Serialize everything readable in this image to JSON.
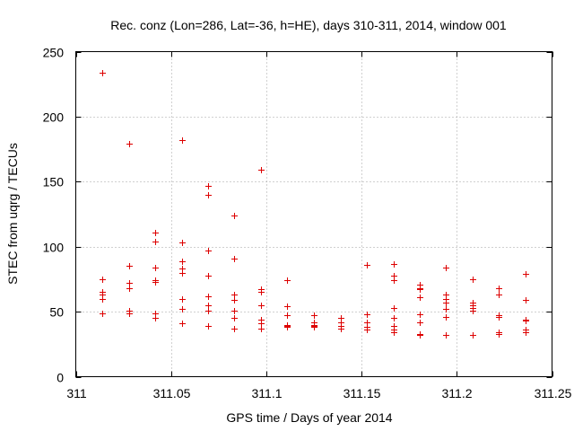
{
  "chart_data": {
    "type": "scatter",
    "title": "Rec. conz (Lon=286, Lat=-36, h=HE), days 310-311, 2014, window 001",
    "xlabel": "GPS time / Days of year 2014",
    "ylabel": "STEC from uqrg / TECUs",
    "xlim": [
      311,
      311.25
    ],
    "ylim": [
      0,
      250
    ],
    "xticks": [
      "311",
      "311.05",
      "311.1",
      "311.15",
      "311.2",
      "311.25"
    ],
    "yticks": [
      "0",
      "50",
      "100",
      "150",
      "200",
      "250"
    ],
    "grid": true,
    "marker": "+",
    "color": "#dd0000",
    "series": [
      {
        "name": "STEC",
        "points": [
          [
            311.0139,
            234
          ],
          [
            311.0139,
            75
          ],
          [
            311.0139,
            65
          ],
          [
            311.0139,
            63
          ],
          [
            311.0139,
            60
          ],
          [
            311.0139,
            49
          ],
          [
            311.0278,
            179
          ],
          [
            311.0278,
            85
          ],
          [
            311.0278,
            72
          ],
          [
            311.0278,
            68
          ],
          [
            311.0278,
            51
          ],
          [
            311.0278,
            49
          ],
          [
            311.0417,
            111
          ],
          [
            311.0417,
            104
          ],
          [
            311.0417,
            84
          ],
          [
            311.0417,
            74
          ],
          [
            311.0417,
            73
          ],
          [
            311.0417,
            49
          ],
          [
            311.0417,
            45
          ],
          [
            311.0556,
            182
          ],
          [
            311.0556,
            103
          ],
          [
            311.0556,
            89
          ],
          [
            311.0556,
            83
          ],
          [
            311.0556,
            80
          ],
          [
            311.0556,
            60
          ],
          [
            311.0556,
            52
          ],
          [
            311.0556,
            41
          ],
          [
            311.0694,
            147
          ],
          [
            311.0694,
            140
          ],
          [
            311.0694,
            97
          ],
          [
            311.0694,
            78
          ],
          [
            311.0694,
            62
          ],
          [
            311.0694,
            55
          ],
          [
            311.0694,
            51
          ],
          [
            311.0694,
            39
          ],
          [
            311.0833,
            124
          ],
          [
            311.0833,
            91
          ],
          [
            311.0833,
            63
          ],
          [
            311.0833,
            59
          ],
          [
            311.0833,
            51
          ],
          [
            311.0833,
            45
          ],
          [
            311.0833,
            37
          ],
          [
            311.0972,
            159
          ],
          [
            311.0972,
            67
          ],
          [
            311.0972,
            65
          ],
          [
            311.0972,
            55
          ],
          [
            311.0972,
            44
          ],
          [
            311.0972,
            41
          ],
          [
            311.0972,
            37
          ],
          [
            311.1111,
            74
          ],
          [
            311.1111,
            54
          ],
          [
            311.1111,
            47
          ],
          [
            311.1111,
            40
          ],
          [
            311.1111,
            39
          ],
          [
            311.1111,
            38
          ],
          [
            311.125,
            47
          ],
          [
            311.125,
            42
          ],
          [
            311.125,
            40
          ],
          [
            311.125,
            39
          ],
          [
            311.125,
            38
          ],
          [
            311.1389,
            45
          ],
          [
            311.1389,
            42
          ],
          [
            311.1389,
            39
          ],
          [
            311.1389,
            37
          ],
          [
            311.1528,
            86
          ],
          [
            311.1528,
            48
          ],
          [
            311.1528,
            42
          ],
          [
            311.1528,
            38
          ],
          [
            311.1528,
            36
          ],
          [
            311.1667,
            87
          ],
          [
            311.1667,
            78
          ],
          [
            311.1667,
            74
          ],
          [
            311.1667,
            53
          ],
          [
            311.1667,
            45
          ],
          [
            311.1667,
            39
          ],
          [
            311.1667,
            36
          ],
          [
            311.1667,
            34
          ],
          [
            311.1806,
            71
          ],
          [
            311.1806,
            68
          ],
          [
            311.1806,
            67
          ],
          [
            311.1806,
            61
          ],
          [
            311.1806,
            48
          ],
          [
            311.1806,
            42
          ],
          [
            311.1806,
            33
          ],
          [
            311.1806,
            32
          ],
          [
            311.1944,
            84
          ],
          [
            311.1944,
            63
          ],
          [
            311.1944,
            60
          ],
          [
            311.1944,
            57
          ],
          [
            311.1944,
            52
          ],
          [
            311.1944,
            46
          ],
          [
            311.1944,
            32
          ],
          [
            311.2083,
            75
          ],
          [
            311.2083,
            57
          ],
          [
            311.2083,
            55
          ],
          [
            311.2083,
            53
          ],
          [
            311.2083,
            51
          ],
          [
            311.2083,
            32
          ],
          [
            311.2222,
            68
          ],
          [
            311.2222,
            63
          ],
          [
            311.2222,
            47
          ],
          [
            311.2222,
            46
          ],
          [
            311.2222,
            34
          ],
          [
            311.2222,
            33
          ],
          [
            311.2361,
            79
          ],
          [
            311.2361,
            59
          ],
          [
            311.2361,
            44
          ],
          [
            311.2361,
            43
          ],
          [
            311.2361,
            36
          ],
          [
            311.2361,
            34
          ]
        ]
      }
    ]
  }
}
